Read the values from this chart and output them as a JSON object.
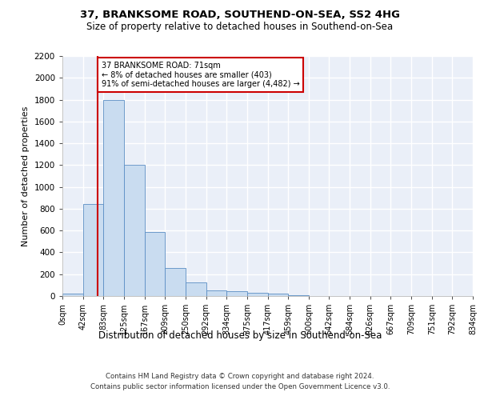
{
  "title_line1": "37, BRANKSOME ROAD, SOUTHEND-ON-SEA, SS2 4HG",
  "title_line2": "Size of property relative to detached houses in Southend-on-Sea",
  "xlabel": "Distribution of detached houses by size in Southend-on-Sea",
  "ylabel": "Number of detached properties",
  "bar_lefts": [
    0,
    41.5,
    83,
    124.5,
    166,
    207.5,
    249,
    290.5,
    332,
    373.5,
    415,
    456.5,
    498,
    539.5,
    581,
    622.5,
    664,
    705.5,
    747,
    788.5
  ],
  "bar_width": 41.5,
  "bar_heights": [
    25,
    845,
    1800,
    1200,
    590,
    260,
    125,
    50,
    45,
    30,
    20,
    5,
    2,
    1,
    0,
    0,
    0,
    0,
    0,
    0
  ],
  "bar_color": "#c9dcf0",
  "bar_edge_color": "#5b8ec4",
  "tick_labels": [
    "0sqm",
    "42sqm",
    "83sqm",
    "125sqm",
    "167sqm",
    "209sqm",
    "250sqm",
    "292sqm",
    "334sqm",
    "375sqm",
    "417sqm",
    "459sqm",
    "500sqm",
    "542sqm",
    "584sqm",
    "626sqm",
    "667sqm",
    "709sqm",
    "751sqm",
    "792sqm",
    "834sqm"
  ],
  "tick_positions": [
    0,
    41.5,
    83,
    124.5,
    166,
    207.5,
    249,
    290.5,
    332,
    373.5,
    415,
    456.5,
    498,
    539.5,
    581,
    622.5,
    664,
    705.5,
    747,
    788.5,
    830
  ],
  "property_line_x": 71,
  "ylim": [
    0,
    2200
  ],
  "yticks": [
    0,
    200,
    400,
    600,
    800,
    1000,
    1200,
    1400,
    1600,
    1800,
    2000,
    2200
  ],
  "annotation_text": "37 BRANKSOME ROAD: 71sqm\n← 8% of detached houses are smaller (403)\n91% of semi-detached houses are larger (4,482) →",
  "annotation_box_color": "#ffffff",
  "annotation_box_edge_color": "#cc0000",
  "property_line_color": "#cc0000",
  "footer_line1": "Contains HM Land Registry data © Crown copyright and database right 2024.",
  "footer_line2": "Contains public sector information licensed under the Open Government Licence v3.0.",
  "bg_color": "#eaeff8",
  "grid_color": "#ffffff"
}
